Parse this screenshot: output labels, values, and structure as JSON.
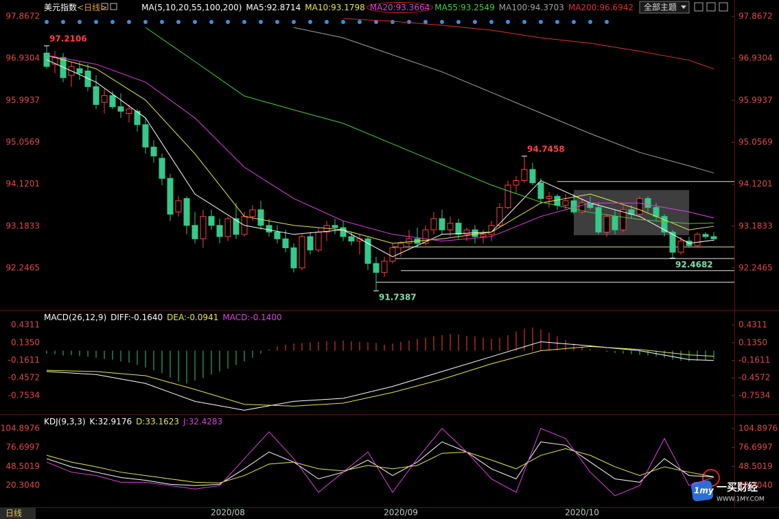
{
  "chart_data": [
    {
      "type": "candlestick",
      "title": "美元指数",
      "period": "<日线>",
      "params": "MA(5,10,20,55,100,200)",
      "up_color": "#ff3d3d",
      "down_color": "#35c98a",
      "open": [
        97.05,
        96.8,
        96.95,
        96.55,
        96.7,
        96.65,
        96.3,
        95.95,
        96.1,
        95.85,
        95.7,
        95.75,
        95.45,
        94.95,
        94.7,
        94.25,
        93.5,
        93.8,
        93.2,
        92.9,
        93.4,
        93.2,
        92.95,
        93.35,
        93.0,
        93.4,
        93.55,
        93.2,
        93.05,
        92.9,
        92.7,
        92.25,
        92.95,
        92.65,
        93.05,
        93.2,
        93.15,
        92.95,
        92.85,
        92.9,
        92.35,
        92.15,
        92.4,
        92.7,
        92.8,
        92.9,
        92.8,
        93.1,
        93.35,
        93.1,
        93.25,
        93.0,
        93.1,
        92.95,
        93.0,
        93.2,
        93.6,
        94.1,
        94.2,
        94.45,
        94.15,
        93.8,
        93.85,
        93.65,
        93.75,
        93.5,
        93.7,
        93.6,
        93.05,
        93.4,
        93.1,
        93.55,
        93.45,
        93.8,
        93.6,
        93.4,
        93.05,
        92.6,
        92.85,
        92.75,
        93.0,
        92.95
      ],
      "high": [
        97.2106,
        97.1,
        97.05,
        96.85,
        96.85,
        96.8,
        96.55,
        96.25,
        96.2,
        96.15,
        95.9,
        95.8,
        95.6,
        95.1,
        94.8,
        94.35,
        93.85,
        93.85,
        93.5,
        93.55,
        93.55,
        93.35,
        93.4,
        93.7,
        93.5,
        93.65,
        93.75,
        93.35,
        93.2,
        93.1,
        92.8,
        93.0,
        93.05,
        93.15,
        93.3,
        93.35,
        93.3,
        93.05,
        93.0,
        92.95,
        92.5,
        92.5,
        92.8,
        92.85,
        93.1,
        93.15,
        93.2,
        93.5,
        93.55,
        93.4,
        93.35,
        93.15,
        93.2,
        93.1,
        93.3,
        93.7,
        94.2,
        94.3,
        94.7458,
        94.6,
        94.25,
        93.95,
        93.9,
        93.9,
        93.9,
        93.8,
        93.85,
        93.7,
        93.45,
        93.55,
        93.65,
        93.65,
        93.85,
        93.85,
        93.7,
        93.45,
        93.1,
        92.95,
        92.95,
        93.05,
        93.05,
        93.05
      ],
      "low": [
        96.7,
        96.6,
        96.4,
        96.3,
        96.45,
        96.2,
        95.8,
        95.7,
        95.8,
        95.6,
        95.5,
        95.3,
        94.8,
        94.6,
        94.1,
        93.3,
        93.4,
        93.0,
        92.8,
        92.7,
        93.1,
        92.8,
        92.85,
        92.9,
        92.95,
        93.3,
        93.1,
        92.95,
        92.8,
        92.6,
        92.15,
        92.2,
        92.55,
        92.6,
        92.85,
        93.0,
        92.85,
        92.75,
        92.55,
        92.2,
        91.7387,
        92.05,
        92.35,
        92.5,
        92.65,
        92.7,
        92.75,
        93.0,
        93.0,
        92.95,
        92.9,
        92.85,
        92.8,
        92.8,
        92.85,
        93.15,
        93.55,
        93.9,
        94.15,
        94.1,
        93.7,
        93.6,
        93.55,
        93.55,
        93.45,
        93.45,
        93.55,
        93.0,
        92.95,
        93.0,
        93.05,
        93.35,
        93.4,
        93.5,
        93.3,
        92.95,
        92.4682,
        92.55,
        92.7,
        92.7,
        92.9,
        92.85
      ],
      "close": [
        96.75,
        96.95,
        96.5,
        96.75,
        96.6,
        96.3,
        95.9,
        96.1,
        95.85,
        95.75,
        95.8,
        95.45,
        94.95,
        94.75,
        94.25,
        93.45,
        93.75,
        93.2,
        92.9,
        93.4,
        93.2,
        92.95,
        93.35,
        93.0,
        93.4,
        93.55,
        93.2,
        93.05,
        92.9,
        92.7,
        92.25,
        92.95,
        92.65,
        93.05,
        93.2,
        93.15,
        92.95,
        92.85,
        92.9,
        92.35,
        92.15,
        92.4,
        92.7,
        92.8,
        92.9,
        92.8,
        93.1,
        93.35,
        93.1,
        93.25,
        93.0,
        93.1,
        92.95,
        93.0,
        93.2,
        93.6,
        94.1,
        94.2,
        94.45,
        94.15,
        93.8,
        93.85,
        93.65,
        93.75,
        93.5,
        93.7,
        93.6,
        93.05,
        93.4,
        93.1,
        93.55,
        93.45,
        93.8,
        93.6,
        93.4,
        93.05,
        92.6,
        92.85,
        92.75,
        93.0,
        92.95,
        92.9
      ],
      "ma_x": [
        0,
        6,
        12,
        18,
        24,
        30,
        36,
        42,
        48,
        54,
        60,
        66,
        72,
        78,
        81
      ],
      "series": [
        {
          "name": "MA5:92.8714",
          "color": "#ffffff",
          "values": [
            96.9,
            96.4,
            95.6,
            93.9,
            93.2,
            93.0,
            93.1,
            92.5,
            93.0,
            93.05,
            94.2,
            93.7,
            93.4,
            92.8,
            92.8714
          ]
        },
        {
          "name": "MA10:93.1798",
          "color": "#e8e84a",
          "values": [
            97.0,
            96.7,
            96.0,
            94.8,
            93.4,
            93.2,
            93.1,
            92.8,
            92.9,
            93.05,
            93.7,
            93.9,
            93.55,
            93.1,
            93.1798
          ]
        },
        {
          "name": "MA20:93.3664",
          "color": "#e040e0",
          "circled": true,
          "values": [
            97.0,
            96.8,
            96.4,
            95.6,
            94.5,
            93.8,
            93.3,
            93.0,
            92.85,
            92.95,
            93.4,
            93.7,
            93.7,
            93.5,
            93.3664
          ]
        },
        {
          "name": "MA55:93.2549",
          "color": "#40d040",
          "values": [
            null,
            null,
            97.62,
            96.86,
            96.09,
            95.78,
            95.48,
            95.02,
            94.56,
            94.1,
            93.72,
            93.49,
            93.33,
            93.24,
            93.2549
          ]
        },
        {
          "name": "MA100:94.3703",
          "color": "#a0a0a0",
          "values": [
            null,
            null,
            null,
            null,
            null,
            97.62,
            97.39,
            97.01,
            96.63,
            96.17,
            95.71,
            95.25,
            94.83,
            94.53,
            94.3703
          ]
        },
        {
          "name": "MA200:96.6942",
          "color": "#e03030",
          "values": [
            null,
            null,
            null,
            null,
            null,
            null,
            97.82,
            97.76,
            97.67,
            97.56,
            97.39,
            97.27,
            97.09,
            96.89,
            96.6942
          ]
        }
      ],
      "ylim": [
        91.3124,
        98.0203
      ],
      "yticks": [
        97.8672,
        96.9304,
        95.9937,
        95.0569,
        94.1201,
        93.1833,
        92.2465
      ],
      "levels": [
        {
          "value": 94.18,
          "from": 62,
          "color": "#e8e8e8"
        },
        {
          "value": 92.72,
          "from": 42,
          "color": "#e8e870"
        },
        {
          "value": 92.46,
          "from": 42,
          "color": "#e8e8e8"
        },
        {
          "value": 92.19,
          "from": 43,
          "color": "#e8e8e8"
        },
        {
          "value": 91.93,
          "from": 40,
          "color": "#e8e8e8"
        }
      ],
      "box": {
        "from": 64,
        "to": 78,
        "top": 93.99,
        "bottom": 92.98,
        "color": "#8a8a8a"
      },
      "annotations": [
        {
          "index": 0,
          "value": 97.2106,
          "position": "above",
          "color": "#ff4040"
        },
        {
          "index": 58,
          "value": 94.7458,
          "position": "above",
          "color": "#ff4040"
        },
        {
          "index": 40,
          "value": 91.7387,
          "position": "below",
          "color": "#7ee0a8"
        },
        {
          "index": 76,
          "value": 92.4682,
          "position": "below",
          "color": "#7ee0a8"
        }
      ],
      "signals": [
        0,
        2,
        4,
        6,
        8,
        10,
        12,
        14,
        16,
        18,
        20,
        22,
        24,
        26,
        28,
        30,
        32,
        34,
        36,
        38,
        40,
        42,
        44,
        46,
        48,
        50,
        52,
        54,
        56,
        58,
        60,
        62,
        64,
        66,
        68
      ],
      "signal_color": "#3a8ee6",
      "x_labels": [
        {
          "index": 22,
          "label": "2020/08"
        },
        {
          "index": 43,
          "label": "2020/09"
        },
        {
          "index": 65,
          "label": "2020/10"
        }
      ]
    },
    {
      "type": "macd",
      "params": "MACD(26,12,9)",
      "x": [
        0,
        6,
        12,
        18,
        24,
        30,
        36,
        42,
        48,
        54,
        60,
        66,
        72,
        78,
        81
      ],
      "series": [
        {
          "name": "DIFF:-0.1640",
          "color": "#ffffff",
          "values": [
            -0.35,
            -0.4,
            -0.55,
            -0.85,
            -1.0,
            -0.85,
            -0.8,
            -0.6,
            -0.35,
            -0.1,
            0.15,
            0.08,
            0.0,
            -0.15,
            -0.164
          ]
        },
        {
          "name": "DEA:-0.0941",
          "color": "#e8e84a",
          "values": [
            -0.33,
            -0.35,
            -0.42,
            -0.65,
            -0.9,
            -0.93,
            -0.88,
            -0.7,
            -0.48,
            -0.22,
            0.0,
            0.07,
            0.02,
            -0.07,
            -0.0941
          ]
        }
      ],
      "histogram": {
        "name": "MACD:-0.1400",
        "color": "#e040e0",
        "up_color": "#ff3d3d",
        "down_color": "#35c98a",
        "values": [
          -0.05,
          -0.06,
          -0.08,
          -0.07,
          -0.09,
          -0.1,
          -0.12,
          -0.14,
          -0.15,
          -0.18,
          -0.2,
          -0.24,
          -0.28,
          -0.33,
          -0.38,
          -0.45,
          -0.52,
          -0.55,
          -0.5,
          -0.46,
          -0.4,
          -0.35,
          -0.3,
          -0.24,
          -0.18,
          -0.12,
          -0.05,
          0.02,
          0.07,
          0.1,
          0.12,
          0.13,
          0.14,
          0.15,
          0.16,
          0.16,
          0.17,
          0.16,
          0.15,
          0.14,
          0.13,
          0.1,
          0.12,
          0.15,
          0.17,
          0.2,
          0.22,
          0.24,
          0.26,
          0.28,
          0.27,
          0.25,
          0.24,
          0.22,
          0.2,
          0.22,
          0.26,
          0.32,
          0.37,
          0.39,
          0.36,
          0.3,
          0.24,
          0.18,
          0.12,
          0.07,
          0.03,
          0.01,
          -0.02,
          -0.04,
          -0.05,
          -0.06,
          -0.07,
          -0.08,
          -0.1,
          -0.12,
          -0.15,
          -0.17,
          -0.18,
          -0.17,
          -0.16,
          -0.14
        ]
      },
      "ylim": [
        -1.0529,
        0.6385
      ],
      "yticks": [
        0.4311,
        {
          "value": 0.135,
          "label": "0.1350"
        },
        -0.1611,
        -0.4572,
        -0.7534
      ]
    },
    {
      "type": "kdj",
      "params": "KDJ(9,3,3)",
      "x": [
        0,
        3,
        6,
        9,
        12,
        15,
        18,
        21,
        24,
        27,
        30,
        33,
        36,
        39,
        42,
        45,
        48,
        51,
        54,
        57,
        60,
        63,
        66,
        69,
        72,
        75,
        78,
        81
      ],
      "series": [
        {
          "name": "K:32.9176",
          "color": "#ffffff",
          "values": [
            60,
            48,
            40,
            32,
            28,
            22,
            20,
            22,
            45,
            70,
            55,
            30,
            40,
            58,
            35,
            55,
            85,
            70,
            45,
            30,
            85,
            80,
            55,
            30,
            25,
            60,
            35,
            32.9176
          ]
        },
        {
          "name": "D:33.1623",
          "color": "#e8e84a",
          "values": [
            65,
            55,
            48,
            40,
            35,
            30,
            25,
            24,
            35,
            52,
            55,
            45,
            42,
            50,
            45,
            50,
            68,
            70,
            58,
            45,
            65,
            75,
            65,
            48,
            35,
            48,
            40,
            33.1623
          ]
        },
        {
          "name": "J:32.4283",
          "color": "#e040e0",
          "values": [
            55,
            40,
            35,
            25,
            25,
            20,
            15,
            20,
            60,
            100,
            60,
            10,
            40,
            70,
            10,
            60,
            105,
            70,
            30,
            10,
            105,
            90,
            40,
            5,
            20,
            90,
            20,
            32.4283
          ]
        }
      ],
      "ylim": [
        -12.3,
        120.2
      ],
      "yticks": [
        104.8976,
        76.6997,
        48.5019,
        {
          "value": 20.304,
          "label": "20.3040"
        }
      ]
    }
  ],
  "ui": {
    "tab": "日线",
    "button": "全部主题",
    "logo_mark": "1my",
    "logo": "一买财经",
    "logo_url": "WWW.1MY.COM"
  }
}
